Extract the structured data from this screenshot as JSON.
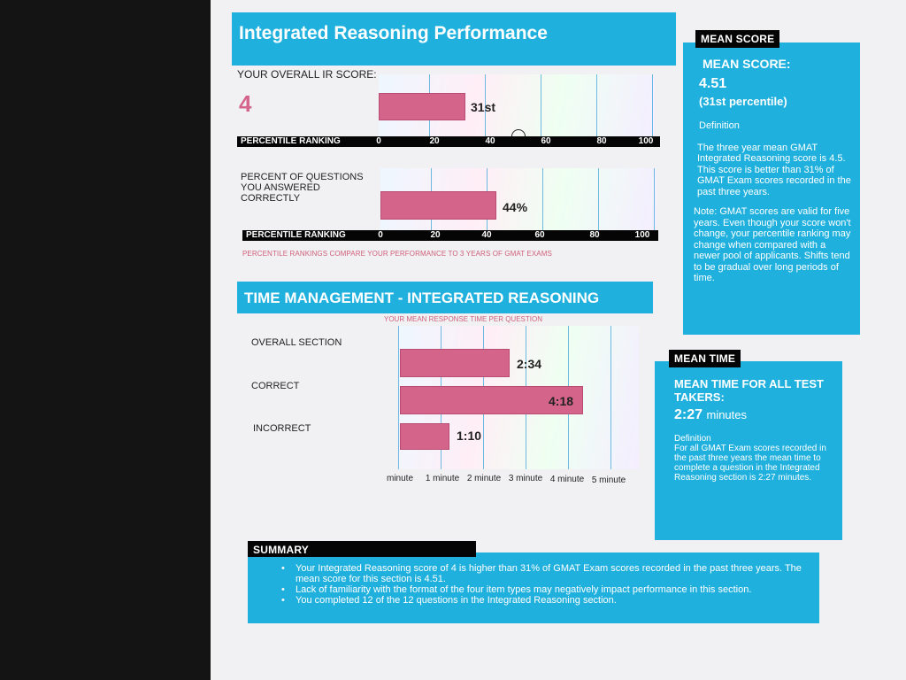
{
  "report": {
    "title": "Integrated Reasoning Performance",
    "score_label": "YOUR OVERALL IR SCORE:",
    "score_value": "4",
    "percent_label": "PERCENT OF QUESTIONS YOU ANSWERED CORRECTLY",
    "score_bar_label": "31st",
    "percent_bar_label": "44%",
    "percentile_ranking_label": "PERCENTILE RANKING",
    "percentile_ticks": [
      "0",
      "20",
      "40",
      "60",
      "80",
      "100"
    ],
    "percentile_note": "PERCENTILE RANKINGS COMPARE YOUR PERFORMANCE TO 3 YEARS OF GMAT EXAMS"
  },
  "chart_data": [
    {
      "type": "bar",
      "title": "",
      "categories": [
        "YOUR OVERALL IR SCORE"
      ],
      "values": [
        31
      ],
      "value_labels": [
        "31st"
      ],
      "xlabel": "PERCENTILE RANKING",
      "xlim": [
        0,
        100
      ],
      "xticks": [
        "0",
        "20",
        "40",
        "60",
        "80",
        "100"
      ]
    },
    {
      "type": "bar",
      "title": "",
      "categories": [
        "PERCENT OF QUESTIONS YOU ANSWERED CORRECTLY"
      ],
      "values": [
        44
      ],
      "value_labels": [
        "44%"
      ],
      "xlabel": "PERCENTILE RANKING",
      "xlim": [
        0,
        100
      ],
      "xticks": [
        "0",
        "20",
        "40",
        "60",
        "80",
        "100"
      ]
    },
    {
      "type": "bar",
      "orientation": "horizontal",
      "title": "TIME MANAGEMENT - INTEGRATED REASONING",
      "subtitle": "YOUR MEAN RESPONSE TIME PER QUESTION",
      "categories": [
        "OVERALL SECTION",
        "CORRECT",
        "INCORRECT"
      ],
      "values": [
        2.567,
        4.3,
        1.167
      ],
      "value_labels": [
        "2:34",
        "4:18",
        "1:10"
      ],
      "xlim": [
        0,
        5
      ],
      "xticks": [
        "minute",
        "1 minute",
        "2 minute",
        "3 minute",
        "4 minute",
        "5 minute"
      ]
    }
  ],
  "time": {
    "title": "TIME MANAGEMENT - INTEGRATED REASONING",
    "subtitle": "YOUR MEAN RESPONSE TIME PER QUESTION",
    "rows": [
      {
        "label": "OVERALL SECTION",
        "value": "2:34"
      },
      {
        "label": "CORRECT",
        "value": "4:18"
      },
      {
        "label": "INCORRECT",
        "value": "1:10"
      }
    ],
    "ticks": [
      "minute",
      "1 minute",
      "2 minute",
      "3 minute",
      "4 minute",
      "5 minute"
    ]
  },
  "mean_score": {
    "tag": "MEAN SCORE",
    "heading": "MEAN SCORE:",
    "value": "4.51",
    "percentile": "(31st percentile)",
    "definition_label": "Definition",
    "definition": "The three year mean GMAT Integrated Reasoning score is 4.5. This score is better than 31% of GMAT Exam scores recorded in the past three years.",
    "note": "Note: GMAT scores are valid for five years. Even though your score won't change, your percentile ranking may change when compared with a newer pool of applicants. Shifts tend to be gradual over long periods of time."
  },
  "mean_time": {
    "tag": "MEAN TIME",
    "heading": "MEAN TIME FOR ALL TEST TAKERS:",
    "value": "2:27",
    "unit": "minutes",
    "definition_label": "Definition",
    "definition": "For all GMAT Exam scores recorded in the past three years the mean time to complete a question in the Integrated Reasoning section is 2:27 minutes."
  },
  "summary": {
    "tag": "SUMMARY",
    "items": [
      "Your Integrated Reasoning score of 4 is higher than 31% of GMAT Exam scores recorded in the past three years. The mean score for this section is 4.51.",
      "Lack of familiarity with the format of the four item types may negatively impact performance in this section.",
      "You completed 12 of the 12 questions in the Integrated Reasoning section."
    ]
  },
  "colors": {
    "accent_blue": "#1fb0de",
    "bar_pink": "#d4648a",
    "score_pink": "#d4648a",
    "note_red": "#d0607a"
  }
}
